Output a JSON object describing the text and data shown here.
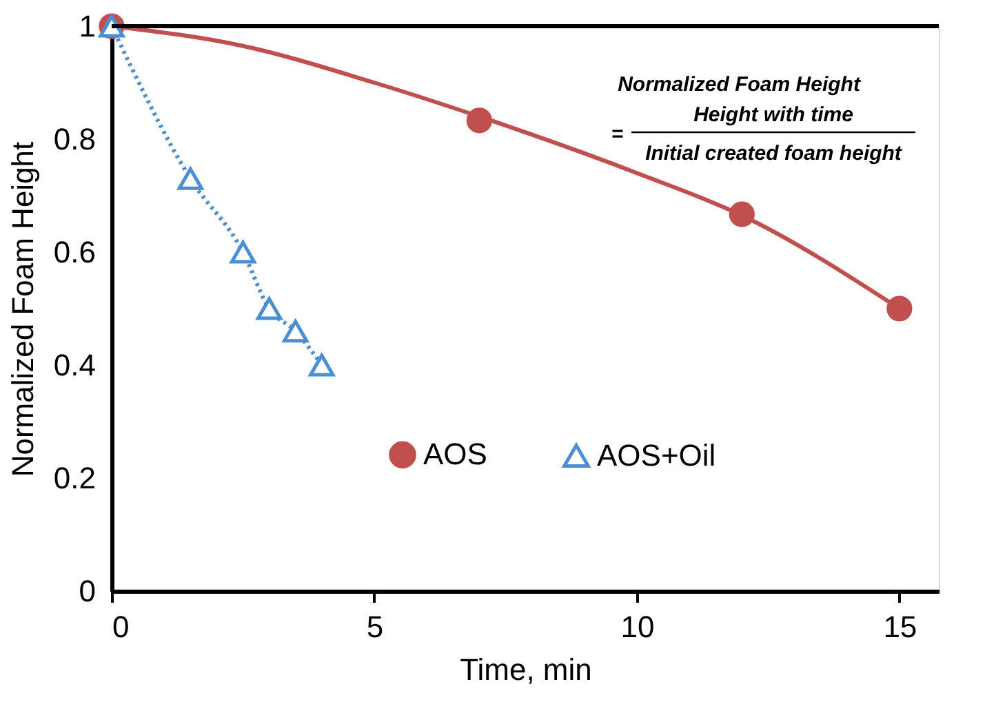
{
  "chart_data": {
    "type": "scatter",
    "xlabel": "Time, min",
    "ylabel": "Normalized Foam Height",
    "xlim": [
      0,
      15.75
    ],
    "xticks": [
      0,
      5,
      10,
      15
    ],
    "ylim": [
      0,
      1
    ],
    "yticks": [
      0,
      0.2,
      0.4,
      0.6,
      0.8,
      1
    ],
    "grid": false,
    "legend": "bottom",
    "annotations": [
      "Normalized Foam Height",
      "=",
      "Height with time",
      "Initial created foam height"
    ],
    "series": [
      {
        "name": "AOS",
        "color": "#c0504d",
        "marker": "circle",
        "x": [
          0,
          7,
          12,
          15
        ],
        "values": [
          1,
          0.833,
          0.667,
          0.5
        ]
      },
      {
        "name": "AOS+Oil",
        "type": "line",
        "color": "#4a8fd6",
        "marker": "triangle",
        "line_style": "dotted",
        "x": [
          0,
          1.5,
          2.5,
          3,
          3.5,
          4
        ],
        "values": [
          1,
          0.73,
          0.6,
          0.5,
          0.46,
          0.4
        ]
      },
      {
        "type": "line",
        "color": "#c0504d",
        "marker": "none",
        "line_style": "solid",
        "x": [
          0,
          2.5,
          5,
          7,
          10,
          12,
          15
        ],
        "values": [
          1,
          0.965,
          0.9,
          0.84,
          0.74,
          0.665,
          0.5
        ]
      }
    ]
  }
}
